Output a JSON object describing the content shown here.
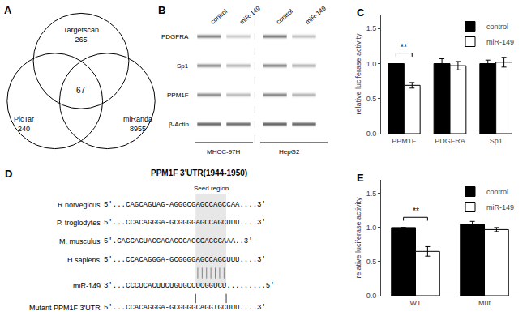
{
  "chart_data": [
    {
      "type": "venn",
      "panel": "A",
      "categories": [
        "Targetscan",
        "PicTar",
        "miRanda"
      ],
      "values": [
        265,
        240,
        8955
      ],
      "intersection": 67
    },
    {
      "type": "western_blot",
      "panel": "B",
      "categories": [
        "control",
        "miR-149",
        "control",
        "miR-149"
      ],
      "groups": [
        "MHCC-97H",
        "HepG2"
      ],
      "rows": [
        "PDGFRA",
        "Sp1",
        "PPM1F",
        "β-Actin"
      ],
      "values": [
        [
          0.35,
          0.72,
          0.3,
          0.68
        ],
        [
          0.4,
          0.62,
          0.35,
          0.6
        ],
        [
          0.42,
          0.65,
          0.38,
          0.62
        ],
        [
          0.25,
          0.28,
          0.22,
          0.25
        ]
      ]
    },
    {
      "type": "bar",
      "panel": "C",
      "categories": [
        "PPM1F",
        "PDGFRA",
        "Sp1"
      ],
      "series": [
        {
          "name": "control",
          "color": "#000000",
          "values": [
            1.0,
            1.0,
            1.0
          ],
          "errors": [
            0.0,
            0.07,
            0.05
          ]
        },
        {
          "name": "miR-149",
          "color": "#ffffff",
          "values": [
            0.69,
            0.97,
            1.02
          ],
          "errors": [
            0.04,
            0.06,
            0.07
          ]
        }
      ],
      "ylabel": "relative luciferase activity",
      "ylim": [
        0.0,
        1.7
      ],
      "yticks": [
        {
          "value": 0.0,
          "label": "0.0"
        },
        0.5,
        {
          "value": 1.0,
          "label": "1.0"
        },
        1.5
      ],
      "grid": false,
      "legend": "upper right",
      "annotations": [
        {
          "text": "**",
          "category": "PPM1F"
        }
      ]
    },
    {
      "type": "alignment",
      "panel": "D",
      "title": "PPM1F 3'UTR(1944-1950)",
      "annotations": [
        "Seed region"
      ],
      "series": [
        {
          "name": "R.norvegicus",
          "sequence": "5'...CAGCAGUAG-AGGGCGAGCCAGCCAA....3'"
        },
        {
          "name": "P. troglodytes",
          "sequence": "5'...CCACAGGGA-GCGGGGAGCCAGCUUU....3'"
        },
        {
          "name": "M. musculus",
          "sequence": "5'.CAGCAGUAGGAGAGCGAGCCAGCCAAA..3'"
        },
        {
          "name": "H.sapiens",
          "sequence": "5'...CCACAGGGA-GCGGGGAGCCAGCUUU....3'"
        },
        {
          "name": "miR-149",
          "sequence": "3'...CCCUCACUUCUGUGCCUCGGUCU.........5'"
        },
        {
          "name": "Mutant PPM1F 3'UTR",
          "sequence": "5'...CCACAGGGA-GCGGGGCAGGTGCUUU....3'"
        }
      ]
    },
    {
      "type": "bar",
      "panel": "E",
      "categories": [
        "WT",
        "Mut"
      ],
      "series": [
        {
          "name": "control",
          "color": "#000000",
          "values": [
            1.0,
            1.05
          ],
          "errors": [
            0.0,
            0.04
          ]
        },
        {
          "name": "miR-149",
          "color": "#ffffff",
          "values": [
            0.65,
            0.97
          ],
          "errors": [
            0.07,
            0.03
          ]
        }
      ],
      "ylabel": "relative luciferase activity",
      "ylim": [
        0.0,
        1.7
      ],
      "yticks": [
        {
          "value": 0.0,
          "label": "0.0"
        },
        0.5,
        {
          "value": 1.0,
          "label": "1.0"
        },
        1.5
      ],
      "grid": false,
      "legend": "upper right",
      "annotations": [
        {
          "text": "**",
          "category": "WT"
        }
      ]
    }
  ]
}
